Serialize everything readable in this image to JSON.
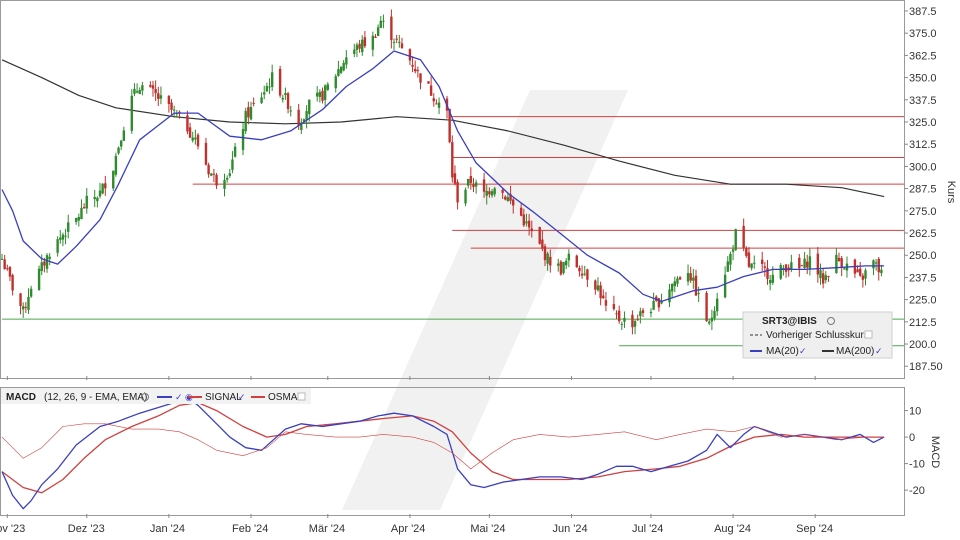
{
  "chart_data": [
    {
      "type": "candlestick",
      "ylabel": "Kurs",
      "ylim": [
        182,
        392
      ],
      "y_ticks": [
        "187.50",
        "200.0",
        "212.5",
        "225.0",
        "237.5",
        "250.0",
        "262.5",
        "275.0",
        "287.5",
        "300.0",
        "312.5",
        "325.0",
        "337.5",
        "350.0",
        "362.5",
        "375.0",
        "387.5"
      ],
      "x_ticks": [
        "Nov '23",
        "Dez '23",
        "Jan '24",
        "Feb '24",
        "Mär '24",
        "Apr '24",
        "Mai '24",
        "Jun '24",
        "Jul '24",
        "Aug '24",
        "Sep '24"
      ],
      "x_range": [
        "2023-10-30",
        "2024-09-30"
      ],
      "symbol": "SRT3@IBIS",
      "legend": {
        "symbol": "SRT3@IBIS",
        "prev_close": "Vorheriger Schlusskurs",
        "ma20": "MA(20)",
        "ma200": "MA(200)"
      },
      "colors": {
        "up": "#2e8b2e",
        "down": "#c0302c",
        "ma20": "#3a3fbf",
        "ma200": "#333333",
        "resistance": "#d04040",
        "support": "#4aa84a"
      },
      "close_series": [
        [
          "2023-10-30",
          248
        ],
        [
          "2023-11-03",
          232
        ],
        [
          "2023-11-07",
          218
        ],
        [
          "2023-11-10",
          233
        ],
        [
          "2023-11-14",
          243
        ],
        [
          "2023-11-17",
          252
        ],
        [
          "2023-11-22",
          262
        ],
        [
          "2023-11-27",
          270
        ],
        [
          "2023-12-01",
          280
        ],
        [
          "2023-12-06",
          285
        ],
        [
          "2023-12-11",
          300
        ],
        [
          "2023-12-14",
          318
        ],
        [
          "2023-12-18",
          338
        ],
        [
          "2023-12-21",
          346
        ],
        [
          "2023-12-27",
          340
        ],
        [
          "2024-01-03",
          330
        ],
        [
          "2024-01-08",
          322
        ],
        [
          "2024-01-12",
          312
        ],
        [
          "2024-01-16",
          298
        ],
        [
          "2024-01-19",
          292
        ],
        [
          "2024-01-24",
          298
        ],
        [
          "2024-01-30",
          328
        ],
        [
          "2024-02-05",
          340
        ],
        [
          "2024-02-09",
          350
        ],
        [
          "2024-02-14",
          338
        ],
        [
          "2024-02-19",
          325
        ],
        [
          "2024-02-23",
          335
        ],
        [
          "2024-02-28",
          340
        ],
        [
          "2024-03-04",
          352
        ],
        [
          "2024-03-08",
          362
        ],
        [
          "2024-03-13",
          368
        ],
        [
          "2024-03-18",
          372
        ],
        [
          "2024-03-21",
          382
        ],
        [
          "2024-03-26",
          372
        ],
        [
          "2024-04-02",
          358
        ],
        [
          "2024-04-05",
          350
        ],
        [
          "2024-04-10",
          340
        ],
        [
          "2024-04-15",
          330
        ],
        [
          "2024-04-17",
          295
        ],
        [
          "2024-04-19",
          282
        ],
        [
          "2024-04-24",
          292
        ],
        [
          "2024-04-29",
          284
        ],
        [
          "2024-05-03",
          290
        ],
        [
          "2024-05-08",
          282
        ],
        [
          "2024-05-13",
          272
        ],
        [
          "2024-05-17",
          262
        ],
        [
          "2024-05-23",
          248
        ],
        [
          "2024-05-28",
          242
        ],
        [
          "2024-05-31",
          248
        ],
        [
          "2024-06-05",
          242
        ],
        [
          "2024-06-11",
          232
        ],
        [
          "2024-06-14",
          220
        ],
        [
          "2024-06-19",
          214
        ],
        [
          "2024-06-24",
          212
        ],
        [
          "2024-06-28",
          218
        ],
        [
          "2024-07-03",
          222
        ],
        [
          "2024-07-09",
          234
        ],
        [
          "2024-07-15",
          242
        ],
        [
          "2024-07-19",
          226
        ],
        [
          "2024-07-23",
          210
        ],
        [
          "2024-07-26",
          228
        ],
        [
          "2024-07-31",
          250
        ],
        [
          "2024-08-02",
          262
        ],
        [
          "2024-08-07",
          244
        ],
        [
          "2024-08-12",
          242
        ],
        [
          "2024-08-16",
          238
        ],
        [
          "2024-08-21",
          244
        ],
        [
          "2024-08-26",
          242
        ],
        [
          "2024-08-30",
          248
        ],
        [
          "2024-09-04",
          236
        ],
        [
          "2024-09-09",
          248
        ],
        [
          "2024-09-13",
          244
        ],
        [
          "2024-09-18",
          236
        ],
        [
          "2024-09-23",
          246
        ],
        [
          "2024-09-26",
          240
        ],
        [
          "2024-09-27",
          236
        ]
      ],
      "ma20_series": [
        [
          "2023-10-30",
          287
        ],
        [
          "2023-11-03",
          275
        ],
        [
          "2023-11-07",
          258
        ],
        [
          "2023-11-14",
          248
        ],
        [
          "2023-11-20",
          245
        ],
        [
          "2023-11-27",
          255
        ],
        [
          "2023-12-06",
          270
        ],
        [
          "2023-12-13",
          290
        ],
        [
          "2023-12-21",
          315
        ],
        [
          "2024-01-03",
          330
        ],
        [
          "2024-01-12",
          330
        ],
        [
          "2024-01-24",
          317
        ],
        [
          "2024-02-05",
          315
        ],
        [
          "2024-02-16",
          320
        ],
        [
          "2024-02-28",
          332
        ],
        [
          "2024-03-08",
          345
        ],
        [
          "2024-03-18",
          355
        ],
        [
          "2024-03-26",
          365
        ],
        [
          "2024-04-05",
          360
        ],
        [
          "2024-04-12",
          345
        ],
        [
          "2024-04-19",
          320
        ],
        [
          "2024-04-26",
          302
        ],
        [
          "2024-05-08",
          285
        ],
        [
          "2024-05-17",
          275
        ],
        [
          "2024-05-28",
          262
        ],
        [
          "2024-06-07",
          250
        ],
        [
          "2024-06-19",
          240
        ],
        [
          "2024-06-28",
          228
        ],
        [
          "2024-07-05",
          224
        ],
        [
          "2024-07-17",
          230
        ],
        [
          "2024-07-26",
          232
        ],
        [
          "2024-08-05",
          238
        ],
        [
          "2024-08-16",
          242
        ],
        [
          "2024-08-28",
          242
        ],
        [
          "2024-09-09",
          243
        ],
        [
          "2024-09-20",
          244
        ],
        [
          "2024-09-27",
          244
        ]
      ],
      "ma200_series": [
        [
          "2023-10-30",
          360
        ],
        [
          "2023-11-14",
          350
        ],
        [
          "2023-11-28",
          340
        ],
        [
          "2023-12-12",
          333
        ],
        [
          "2024-01-03",
          328
        ],
        [
          "2024-01-24",
          325
        ],
        [
          "2024-02-14",
          324
        ],
        [
          "2024-03-06",
          325
        ],
        [
          "2024-03-27",
          328
        ],
        [
          "2024-04-17",
          326
        ],
        [
          "2024-05-08",
          320
        ],
        [
          "2024-05-29",
          312
        ],
        [
          "2024-06-19",
          303
        ],
        [
          "2024-07-10",
          295
        ],
        [
          "2024-07-31",
          290
        ],
        [
          "2024-08-21",
          290
        ],
        [
          "2024-09-11",
          288
        ],
        [
          "2024-09-27",
          283
        ]
      ],
      "horizontal_levels": [
        {
          "kind": "resistance",
          "value": 328,
          "from": "2024-04-17"
        },
        {
          "kind": "resistance",
          "value": 305,
          "from": "2024-04-17"
        },
        {
          "kind": "resistance",
          "value": 290,
          "from": "2024-01-10"
        },
        {
          "kind": "resistance",
          "value": 264,
          "from": "2024-04-17"
        },
        {
          "kind": "resistance",
          "value": 254,
          "from": "2024-04-24"
        },
        {
          "kind": "support",
          "value": 214,
          "from": "2023-10-30"
        },
        {
          "kind": "support",
          "value": 199,
          "from": "2024-06-19"
        }
      ]
    },
    {
      "type": "line",
      "title": "MACD",
      "params": "(12, 26, 9 - EMA, EMA)",
      "ylabel": "MACD",
      "ylim": [
        -29,
        17
      ],
      "y_ticks": [
        "10",
        "0",
        "-10",
        "-20"
      ],
      "series": [
        {
          "name": "MACD",
          "color": "#3a3fbf",
          "values": [
            [
              "2023-10-30",
              -13
            ],
            [
              "2023-11-03",
              -22
            ],
            [
              "2023-11-07",
              -27
            ],
            [
              "2023-11-10",
              -24
            ],
            [
              "2023-11-14",
              -18
            ],
            [
              "2023-11-20",
              -12
            ],
            [
              "2023-11-27",
              -3
            ],
            [
              "2023-12-06",
              4
            ],
            [
              "2023-12-13",
              6
            ],
            [
              "2023-12-21",
              9
            ],
            [
              "2024-01-03",
              13
            ],
            [
              "2024-01-08",
              15
            ],
            [
              "2024-01-12",
              12
            ],
            [
              "2024-01-19",
              5
            ],
            [
              "2024-01-24",
              0
            ],
            [
              "2024-01-30",
              -4
            ],
            [
              "2024-02-05",
              -5
            ],
            [
              "2024-02-14",
              3
            ],
            [
              "2024-02-20",
              5
            ],
            [
              "2024-02-28",
              4
            ],
            [
              "2024-03-06",
              5
            ],
            [
              "2024-03-13",
              6
            ],
            [
              "2024-03-20",
              8
            ],
            [
              "2024-03-26",
              9
            ],
            [
              "2024-04-02",
              8
            ],
            [
              "2024-04-10",
              4
            ],
            [
              "2024-04-15",
              1
            ],
            [
              "2024-04-19",
              -12
            ],
            [
              "2024-04-24",
              -18
            ],
            [
              "2024-04-29",
              -19
            ],
            [
              "2024-05-06",
              -17
            ],
            [
              "2024-05-13",
              -16
            ],
            [
              "2024-05-20",
              -15
            ],
            [
              "2024-05-28",
              -15
            ],
            [
              "2024-06-05",
              -16
            ],
            [
              "2024-06-11",
              -14
            ],
            [
              "2024-06-18",
              -11
            ],
            [
              "2024-06-24",
              -11
            ],
            [
              "2024-07-01",
              -13
            ],
            [
              "2024-07-08",
              -11
            ],
            [
              "2024-07-15",
              -9
            ],
            [
              "2024-07-22",
              -5
            ],
            [
              "2024-07-26",
              1
            ],
            [
              "2024-07-31",
              -4
            ],
            [
              "2024-08-05",
              1
            ],
            [
              "2024-08-09",
              4
            ],
            [
              "2024-08-15",
              2
            ],
            [
              "2024-08-21",
              0
            ],
            [
              "2024-08-28",
              1
            ],
            [
              "2024-09-04",
              0
            ],
            [
              "2024-09-11",
              -1
            ],
            [
              "2024-09-18",
              1
            ],
            [
              "2024-09-23",
              -2
            ],
            [
              "2024-09-27",
              0
            ]
          ]
        },
        {
          "name": "SIGNAL",
          "color": "#d04040",
          "values": [
            [
              "2023-10-30",
              -13
            ],
            [
              "2023-11-07",
              -19
            ],
            [
              "2023-11-14",
              -21
            ],
            [
              "2023-11-22",
              -16
            ],
            [
              "2023-11-30",
              -8
            ],
            [
              "2023-12-08",
              -1
            ],
            [
              "2023-12-18",
              4
            ],
            [
              "2023-12-28",
              8
            ],
            [
              "2024-01-05",
              12
            ],
            [
              "2024-01-12",
              13
            ],
            [
              "2024-01-19",
              10
            ],
            [
              "2024-01-29",
              4
            ],
            [
              "2024-02-07",
              0
            ],
            [
              "2024-02-14",
              1
            ],
            [
              "2024-02-22",
              4
            ],
            [
              "2024-03-04",
              5
            ],
            [
              "2024-03-13",
              6
            ],
            [
              "2024-03-22",
              7
            ],
            [
              "2024-04-02",
              8
            ],
            [
              "2024-04-10",
              6
            ],
            [
              "2024-04-17",
              2
            ],
            [
              "2024-04-24",
              -6
            ],
            [
              "2024-05-02",
              -13
            ],
            [
              "2024-05-10",
              -16
            ],
            [
              "2024-05-20",
              -16
            ],
            [
              "2024-05-31",
              -16
            ],
            [
              "2024-06-11",
              -15
            ],
            [
              "2024-06-21",
              -13
            ],
            [
              "2024-07-03",
              -12
            ],
            [
              "2024-07-12",
              -11
            ],
            [
              "2024-07-22",
              -8
            ],
            [
              "2024-08-01",
              -3
            ],
            [
              "2024-08-09",
              0
            ],
            [
              "2024-08-19",
              1
            ],
            [
              "2024-08-28",
              0
            ],
            [
              "2024-09-09",
              0
            ],
            [
              "2024-09-20",
              0
            ],
            [
              "2024-09-27",
              0
            ]
          ]
        }
      ],
      "osma_label": "OSMA",
      "osma": [
        [
          "2023-10-30",
          0
        ],
        [
          "2023-11-07",
          -8
        ],
        [
          "2023-11-14",
          -4
        ],
        [
          "2023-11-22",
          4
        ],
        [
          "2023-11-30",
          5
        ],
        [
          "2023-12-08",
          5
        ],
        [
          "2023-12-18",
          3
        ],
        [
          "2023-12-28",
          3
        ],
        [
          "2024-01-05",
          2
        ],
        [
          "2024-01-12",
          -1
        ],
        [
          "2024-01-19",
          -5
        ],
        [
          "2024-01-29",
          -7
        ],
        [
          "2024-02-07",
          -4
        ],
        [
          "2024-02-14",
          2
        ],
        [
          "2024-02-22",
          1
        ],
        [
          "2024-03-04",
          0
        ],
        [
          "2024-03-13",
          0
        ],
        [
          "2024-03-22",
          1
        ],
        [
          "2024-04-02",
          0
        ],
        [
          "2024-04-10",
          -2
        ],
        [
          "2024-04-17",
          -6
        ],
        [
          "2024-04-24",
          -12
        ],
        [
          "2024-05-02",
          -6
        ],
        [
          "2024-05-10",
          -1
        ],
        [
          "2024-05-20",
          1
        ],
        [
          "2024-05-31",
          0
        ],
        [
          "2024-06-11",
          1
        ],
        [
          "2024-06-21",
          2
        ],
        [
          "2024-07-03",
          -1
        ],
        [
          "2024-07-12",
          1
        ],
        [
          "2024-07-22",
          3
        ],
        [
          "2024-08-01",
          2
        ],
        [
          "2024-08-09",
          4
        ],
        [
          "2024-08-19",
          0
        ],
        [
          "2024-08-28",
          1
        ],
        [
          "2024-09-09",
          -1
        ],
        [
          "2024-09-20",
          0
        ],
        [
          "2024-09-27",
          0
        ]
      ]
    }
  ]
}
